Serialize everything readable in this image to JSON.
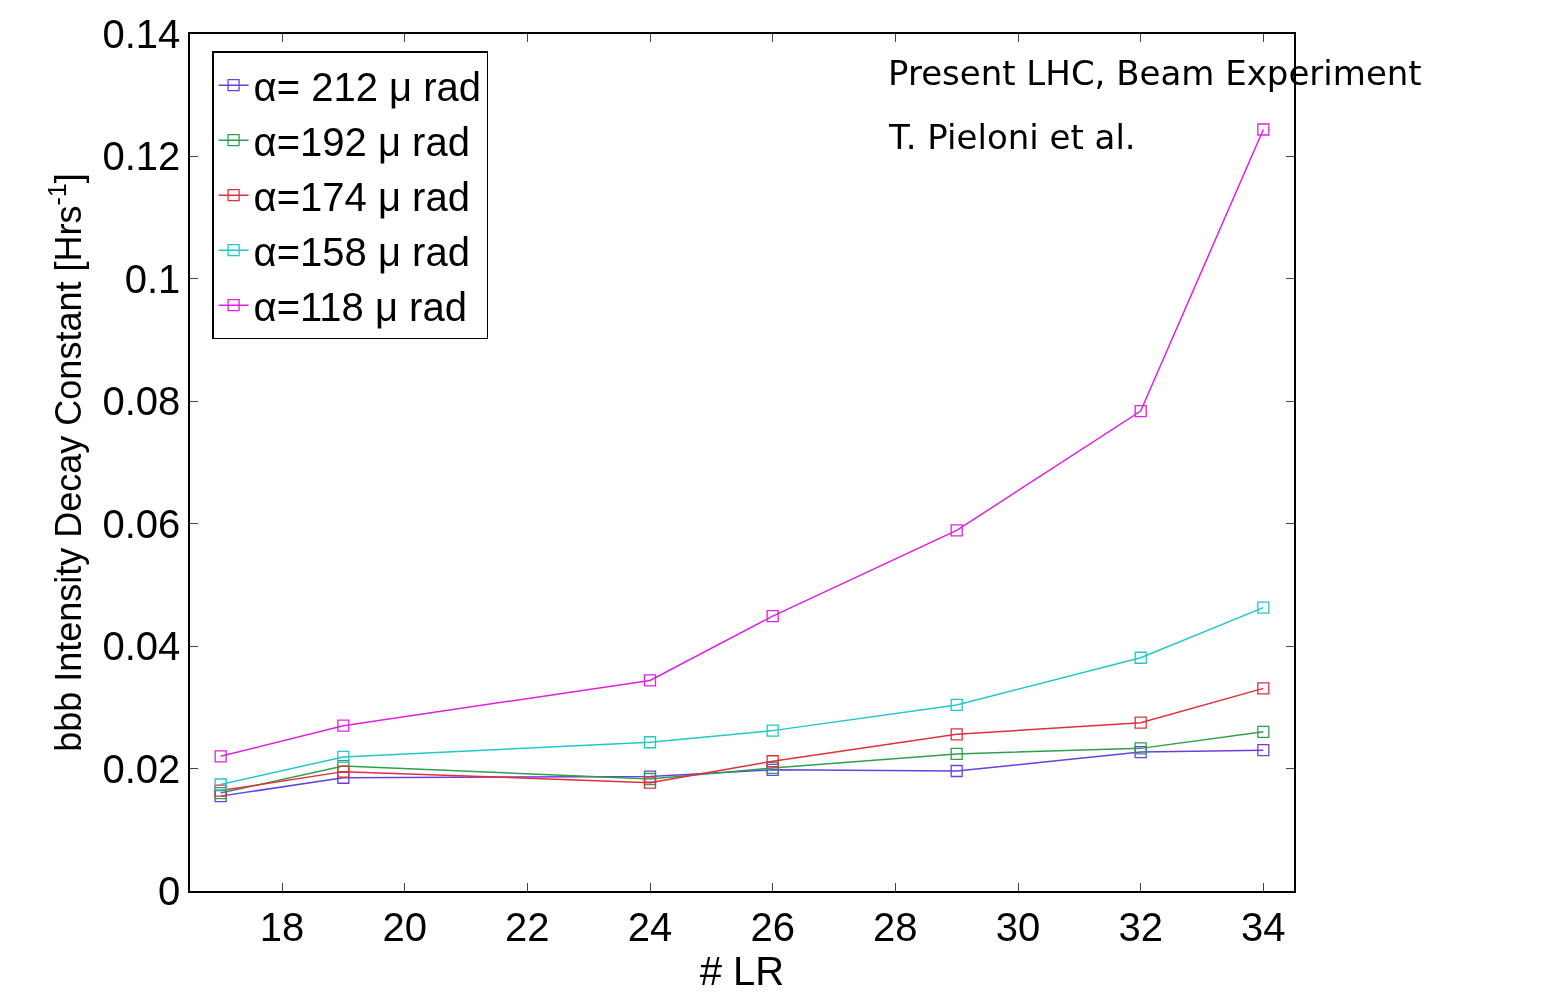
{
  "chart_data": {
    "type": "line",
    "xlabel": "# LR",
    "ylabel": "bbb Intensity Decay Constant [Hrs$^{-1}$]",
    "x": [
      17,
      19,
      24,
      26,
      29,
      32,
      34
    ],
    "series": [
      {
        "name": "α= 212 μ rad",
        "color": "#6a3fe0",
        "values": [
          0.0155,
          0.0185,
          0.0187,
          0.0198,
          0.0196,
          0.0227,
          0.023
        ]
      },
      {
        "name": "α=192 μ rad",
        "color": "#2e9e50",
        "values": [
          0.016,
          0.0204,
          0.0183,
          0.0201,
          0.0224,
          0.0233,
          0.026
        ]
      },
      {
        "name": "α=174 μ rad",
        "color": "#e0303a",
        "values": [
          0.0164,
          0.0195,
          0.0177,
          0.0212,
          0.0256,
          0.0275,
          0.0331
        ]
      },
      {
        "name": "α=158 μ rad",
        "color": "#20c8cc",
        "values": [
          0.0174,
          0.0219,
          0.0243,
          0.0262,
          0.0304,
          0.0381,
          0.0463
        ]
      },
      {
        "name": "α=118 μ rad",
        "color": "#e020e0",
        "values": [
          0.022,
          0.027,
          0.0344,
          0.0449,
          0.0589,
          0.0784,
          0.1244
        ]
      }
    ],
    "xlim": [
      16.5,
      34.5
    ],
    "xticks": [
      18,
      20,
      22,
      24,
      26,
      28,
      30,
      32,
      34
    ],
    "ylim": [
      0,
      0.14
    ],
    "yticks": [
      0,
      0.02,
      0.04,
      0.06,
      0.08,
      0.1,
      0.12,
      0.14
    ],
    "annotations": [
      "Present LHC, Beam Experiment",
      "T. Pieloni et al."
    ],
    "legend": "top left",
    "marker": "square",
    "line_style": "solid"
  }
}
